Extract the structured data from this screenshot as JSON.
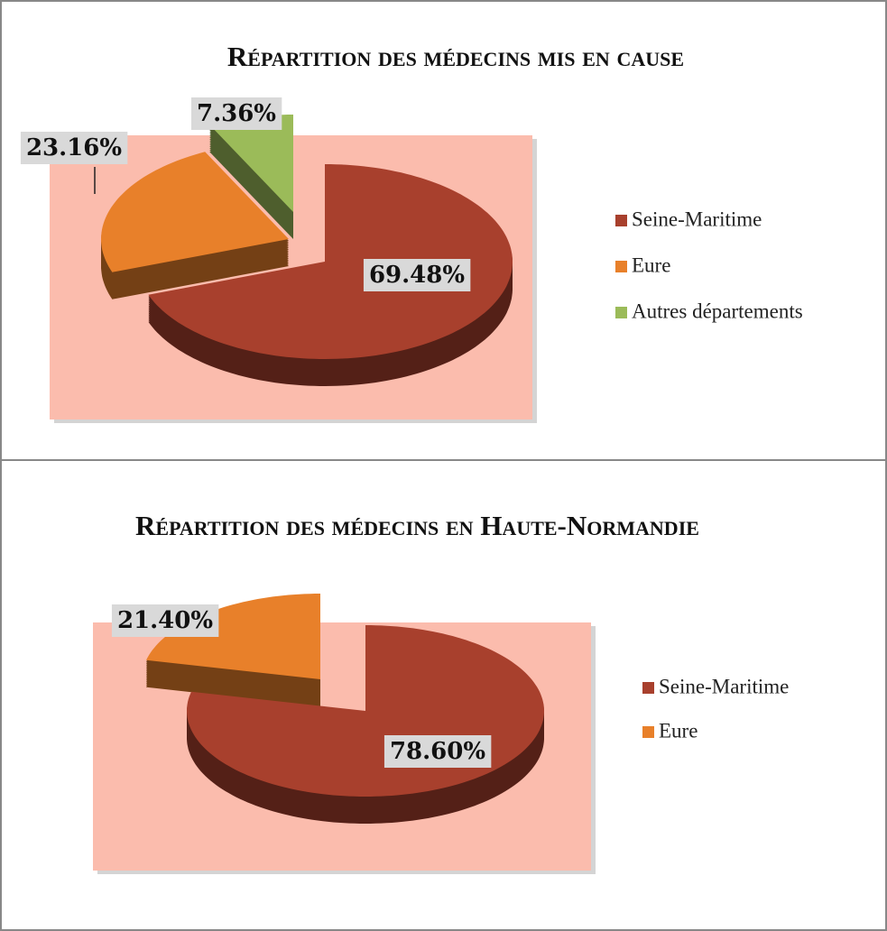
{
  "chart_data": [
    {
      "type": "pie",
      "title": "Répartition des médecins mis en cause",
      "categories": [
        "Seine-Maritime",
        "Eure",
        "Autres départements"
      ],
      "values": [
        69.48,
        23.16,
        7.36
      ],
      "value_labels": [
        "69.48%",
        "23.16%",
        "7.36%"
      ],
      "colors": [
        "#a8402d",
        "#e8802a",
        "#9bbb59"
      ],
      "legend": "right"
    },
    {
      "type": "pie",
      "title": "Répartition des médecins en Haute-Normandie",
      "categories": [
        "Seine-Maritime",
        "Eure"
      ],
      "values": [
        78.6,
        21.4
      ],
      "value_labels": [
        "78.60%",
        "21.40%"
      ],
      "colors": [
        "#a8402d",
        "#e8802a"
      ],
      "legend": "right"
    }
  ]
}
